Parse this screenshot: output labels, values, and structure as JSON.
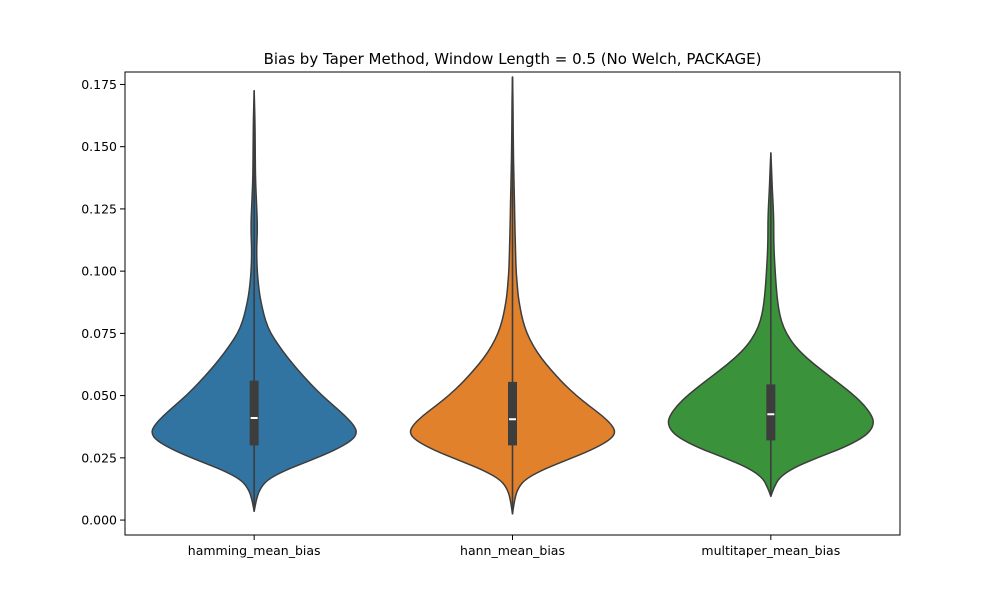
{
  "chart_data": {
    "type": "violin",
    "title": "Bias by Taper Method, Window Length = 0.5 (No Welch, PACKAGE)",
    "xlabel": "",
    "ylabel": "",
    "ylim": [
      -0.006,
      0.18
    ],
    "yticks": [
      0.0,
      0.025,
      0.05,
      0.075,
      0.1,
      0.125,
      0.15,
      0.175
    ],
    "ytick_labels": [
      "0.000",
      "0.025",
      "0.050",
      "0.075",
      "0.100",
      "0.125",
      "0.150",
      "0.175"
    ],
    "grid": false,
    "legend": "none",
    "categories": [
      "hamming_mean_bias",
      "hann_mean_bias",
      "multitaper_mean_bias"
    ],
    "series": [
      {
        "category": "hamming_mean_bias",
        "color": "#3274a1",
        "min": 0.0035,
        "q1": 0.03,
        "median": 0.041,
        "q3": 0.056,
        "whisker_high": 0.0865,
        "max": 0.1725,
        "density": [
          [
            0.0035,
            0.0
          ],
          [
            0.008,
            0.02
          ],
          [
            0.012,
            0.05
          ],
          [
            0.016,
            0.12
          ],
          [
            0.02,
            0.3
          ],
          [
            0.024,
            0.55
          ],
          [
            0.028,
            0.78
          ],
          [
            0.032,
            0.95
          ],
          [
            0.035,
            1.0
          ],
          [
            0.038,
            0.97
          ],
          [
            0.042,
            0.88
          ],
          [
            0.046,
            0.77
          ],
          [
            0.05,
            0.66
          ],
          [
            0.055,
            0.54
          ],
          [
            0.06,
            0.43
          ],
          [
            0.065,
            0.33
          ],
          [
            0.07,
            0.24
          ],
          [
            0.075,
            0.16
          ],
          [
            0.08,
            0.11
          ],
          [
            0.085,
            0.08
          ],
          [
            0.09,
            0.055
          ],
          [
            0.095,
            0.04
          ],
          [
            0.1,
            0.03
          ],
          [
            0.105,
            0.025
          ],
          [
            0.11,
            0.025
          ],
          [
            0.115,
            0.03
          ],
          [
            0.12,
            0.03
          ],
          [
            0.125,
            0.025
          ],
          [
            0.13,
            0.02
          ],
          [
            0.135,
            0.015
          ],
          [
            0.14,
            0.012
          ],
          [
            0.15,
            0.01
          ],
          [
            0.16,
            0.008
          ],
          [
            0.1725,
            0.0
          ]
        ]
      },
      {
        "category": "hann_mean_bias",
        "color": "#e1812c",
        "min": 0.0025,
        "q1": 0.03,
        "median": 0.0405,
        "q3": 0.0555,
        "whisker_high": 0.087,
        "max": 0.178,
        "density": [
          [
            0.0025,
            0.0
          ],
          [
            0.008,
            0.02
          ],
          [
            0.012,
            0.045
          ],
          [
            0.016,
            0.11
          ],
          [
            0.02,
            0.28
          ],
          [
            0.024,
            0.52
          ],
          [
            0.028,
            0.76
          ],
          [
            0.032,
            0.94
          ],
          [
            0.035,
            1.0
          ],
          [
            0.038,
            0.97
          ],
          [
            0.042,
            0.87
          ],
          [
            0.046,
            0.74
          ],
          [
            0.05,
            0.62
          ],
          [
            0.055,
            0.49
          ],
          [
            0.06,
            0.38
          ],
          [
            0.065,
            0.28
          ],
          [
            0.07,
            0.2
          ],
          [
            0.075,
            0.14
          ],
          [
            0.08,
            0.1
          ],
          [
            0.085,
            0.075
          ],
          [
            0.09,
            0.055
          ],
          [
            0.095,
            0.045
          ],
          [
            0.1,
            0.035
          ],
          [
            0.11,
            0.028
          ],
          [
            0.12,
            0.022
          ],
          [
            0.125,
            0.02
          ],
          [
            0.13,
            0.018
          ],
          [
            0.14,
            0.012
          ],
          [
            0.15,
            0.008
          ],
          [
            0.16,
            0.006
          ],
          [
            0.17,
            0.004
          ],
          [
            0.178,
            0.0
          ]
        ]
      },
      {
        "category": "multitaper_mean_bias",
        "color": "#3a923a",
        "min": 0.0095,
        "q1": 0.032,
        "median": 0.0425,
        "q3": 0.0545,
        "whisker_high": 0.0825,
        "max": 0.1475,
        "density": [
          [
            0.0095,
            0.0
          ],
          [
            0.013,
            0.03
          ],
          [
            0.017,
            0.08
          ],
          [
            0.021,
            0.22
          ],
          [
            0.025,
            0.45
          ],
          [
            0.029,
            0.7
          ],
          [
            0.033,
            0.89
          ],
          [
            0.036,
            0.97
          ],
          [
            0.039,
            1.0
          ],
          [
            0.042,
            0.98
          ],
          [
            0.046,
            0.91
          ],
          [
            0.05,
            0.81
          ],
          [
            0.055,
            0.66
          ],
          [
            0.06,
            0.5
          ],
          [
            0.065,
            0.35
          ],
          [
            0.07,
            0.23
          ],
          [
            0.075,
            0.15
          ],
          [
            0.08,
            0.1
          ],
          [
            0.085,
            0.075
          ],
          [
            0.09,
            0.06
          ],
          [
            0.095,
            0.05
          ],
          [
            0.1,
            0.042
          ],
          [
            0.105,
            0.035
          ],
          [
            0.11,
            0.03
          ],
          [
            0.115,
            0.028
          ],
          [
            0.12,
            0.028
          ],
          [
            0.125,
            0.024
          ],
          [
            0.13,
            0.018
          ],
          [
            0.135,
            0.012
          ],
          [
            0.14,
            0.008
          ],
          [
            0.1475,
            0.0
          ]
        ]
      }
    ]
  }
}
